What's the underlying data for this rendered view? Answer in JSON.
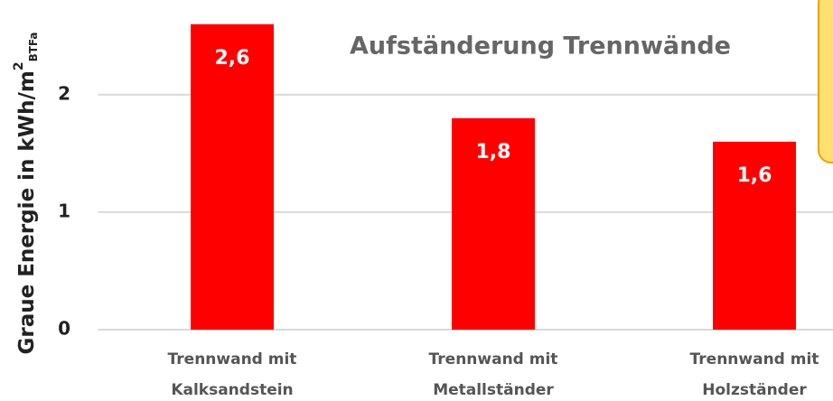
{
  "chart_data": {
    "type": "bar",
    "title": "Aufständerung Trennwände",
    "ylabel": {
      "text": "Graue Energie in kWh/m",
      "sup": "2",
      "sub": "BTFa"
    },
    "categories": [
      "Trennwand mit Kalksandstein",
      "Trennwand mit Metallständer",
      "Trennwand mit Holzständer"
    ],
    "values": [
      2.6,
      1.8,
      1.6
    ],
    "value_labels": [
      "2,6",
      "1,8",
      "1,6"
    ],
    "color": "#ff0000",
    "ylim": [
      0,
      2.8
    ],
    "yticks": [
      0,
      1,
      2
    ],
    "grid": true
  }
}
